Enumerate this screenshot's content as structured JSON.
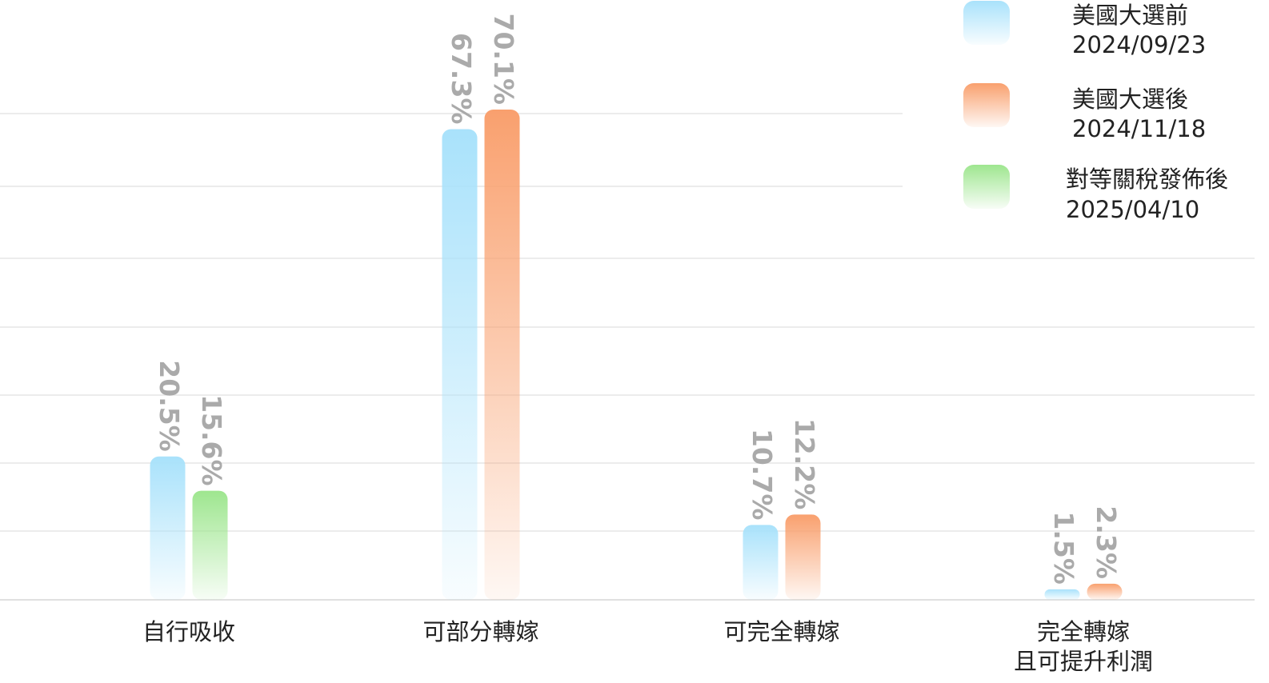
{
  "chart_data": {
    "type": "bar",
    "categories": [
      [
        "自行吸收"
      ],
      [
        "可部分轉嫁"
      ],
      [
        "可完全轉嫁"
      ],
      [
        "完全轉嫁",
        "且可提升利潤"
      ]
    ],
    "series": [
      {
        "name": [
          "美國大選前",
          "2024/09/23"
        ],
        "color": "#a9e2fb",
        "values": [
          20.5,
          67.3,
          10.7,
          1.5
        ]
      },
      {
        "name": [
          "美國大選後",
          "2024/11/18"
        ],
        "color": "#f9a06e",
        "values": [
          null,
          70.1,
          12.2,
          2.3
        ]
      },
      {
        "name": [
          "對等關稅發佈後",
          "2025/04/10"
        ],
        "color": "#9ee68f",
        "values": [
          15.6,
          null,
          null,
          null
        ]
      }
    ],
    "value_labels": [
      [
        "20.5%",
        "67.3%",
        "10.7%",
        "1.5%"
      ],
      [
        "",
        "70.1%",
        "12.2%",
        "2.3%"
      ],
      [
        "15.6%",
        "",
        "",
        ""
      ]
    ],
    "ylim": [
      0,
      70.1
    ],
    "grid": true,
    "legend_position": "top-right"
  }
}
